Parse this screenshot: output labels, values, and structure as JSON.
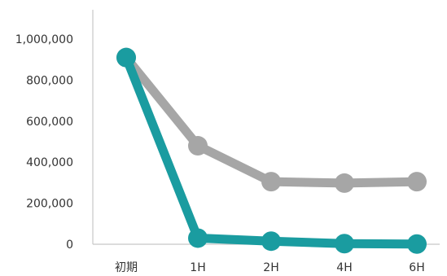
{
  "chart_data": {
    "type": "line",
    "title": "",
    "xlabel": "",
    "ylabel": "",
    "categories": [
      "初期",
      "1H",
      "2H",
      "4H",
      "6H"
    ],
    "y_tick_labels": [
      "0",
      "200,000",
      "400,000",
      "600,000",
      "800,000",
      "1,000,000"
    ],
    "y_ticks": [
      0,
      200000,
      400000,
      600000,
      800000,
      1000000
    ],
    "ylim": [
      0,
      1000000
    ],
    "grid": false,
    "legend": "none",
    "series": [
      {
        "color": "#a6a6a6",
        "values": [
          910000,
          480000,
          305000,
          298000,
          305000
        ]
      },
      {
        "color": "#1a9ca0",
        "values": [
          910000,
          30000,
          15000,
          3000,
          1000
        ]
      }
    ]
  }
}
